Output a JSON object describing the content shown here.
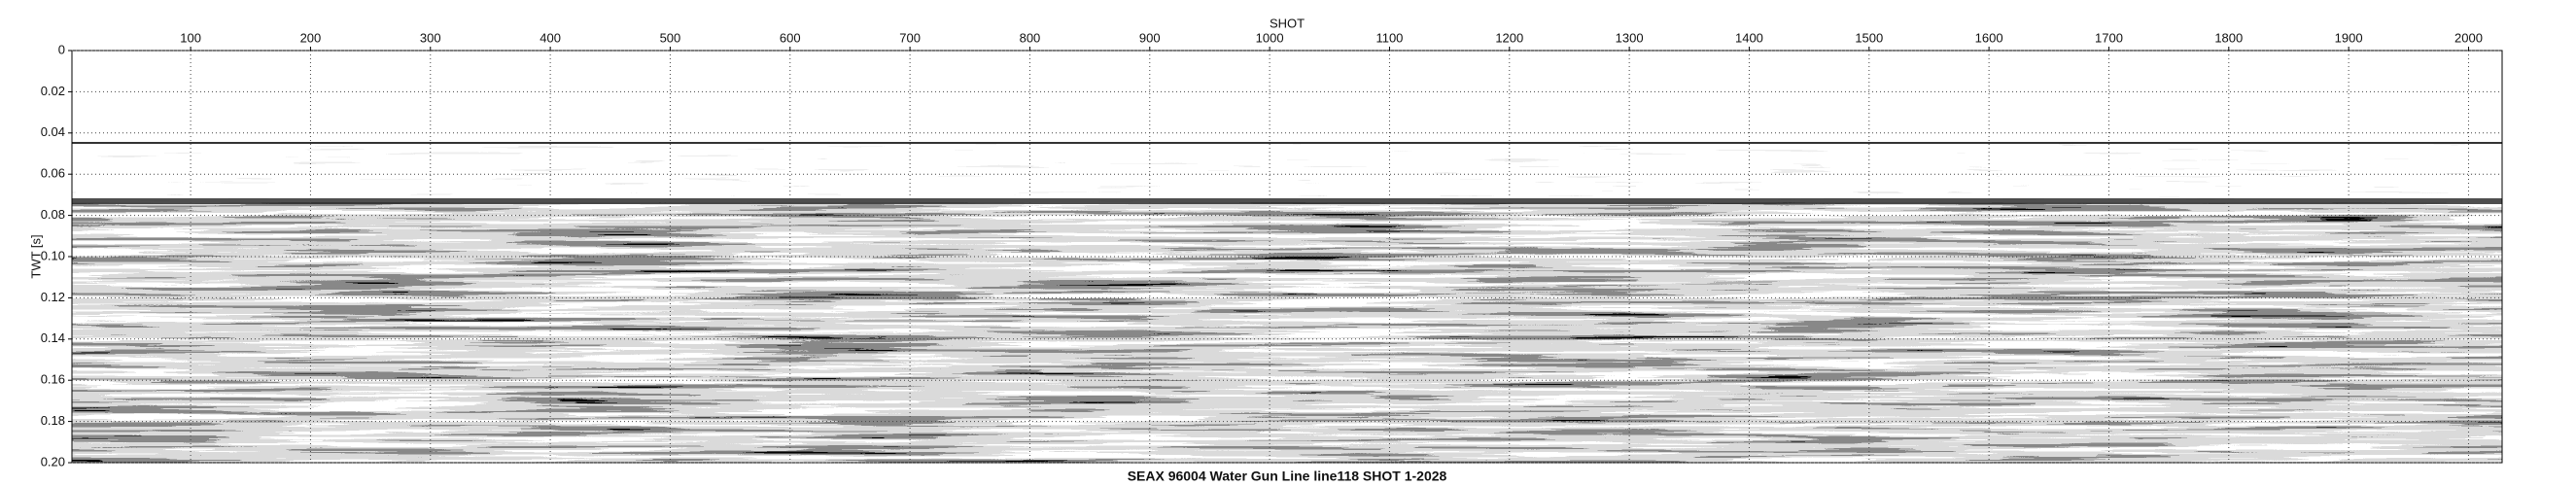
{
  "chart_data": {
    "type": "seismic-section",
    "title": "SEAX 96004 Water Gun Line line118 SHOT 1-2028",
    "x_label": "SHOT",
    "y_label": "TWT [s]",
    "xlim": [
      1,
      2028
    ],
    "xticks": [
      100,
      200,
      300,
      400,
      500,
      600,
      700,
      800,
      900,
      1000,
      1100,
      1200,
      1300,
      1400,
      1500,
      1600,
      1700,
      1800,
      1900,
      2000
    ],
    "ylim": [
      0,
      0.2
    ],
    "y_inverted": true,
    "yticks": [
      0,
      0.02,
      0.04,
      0.06,
      0.08,
      {
        "value": 0.1,
        "label": "0.10"
      },
      0.12,
      0.14,
      0.16,
      0.18,
      {
        "value": 0.2,
        "label": "0.20"
      }
    ],
    "grid": true
  }
}
